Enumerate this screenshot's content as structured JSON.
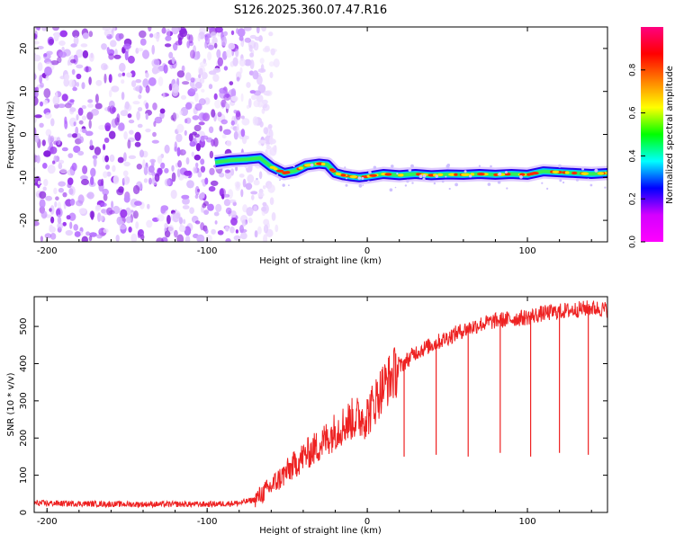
{
  "title": "S126.2025.360.07.47.R16",
  "colorbar": {
    "label": "Normalized spectral amplitude",
    "ticks": [
      "0.0",
      "0.2",
      "0.4",
      "0.6",
      "0.8"
    ],
    "stops": [
      "#ff00ff",
      "#d400ff",
      "#0000ff",
      "#00ffff",
      "#00ff00",
      "#ffff00",
      "#ff8000",
      "#ff0000",
      "#ff0080"
    ]
  },
  "chart_data": [
    {
      "type": "heatmap",
      "title": "S126.2025.360.07.47.R16",
      "xlabel": "Height of straight line (km)",
      "ylabel": "Frequency (Hz)",
      "xlim": [
        -208,
        150
      ],
      "ylim": [
        -25,
        25
      ],
      "xticks": [
        "-200",
        "-100",
        "0",
        "100"
      ],
      "yticks": [
        "-20",
        "-10",
        "0",
        "10",
        "20"
      ],
      "noise_region_x": [
        -208,
        -65
      ],
      "signal_track": {
        "x": [
          -95,
          -85,
          -75,
          -67,
          -60,
          -52,
          -45,
          -38,
          -30,
          -25,
          -20,
          -15,
          -10,
          -5,
          0,
          10,
          20,
          30,
          40,
          50,
          60,
          70,
          80,
          90,
          100,
          110,
          120,
          130,
          140,
          150
        ],
        "frequency": [
          -6.5,
          -6.0,
          -5.8,
          -5.5,
          -7.5,
          -9.0,
          -8.5,
          -7.2,
          -6.8,
          -7.0,
          -9.0,
          -9.5,
          -9.8,
          -10.0,
          -9.8,
          -9.2,
          -9.5,
          -9.2,
          -9.5,
          -9.3,
          -9.4,
          -9.2,
          -9.4,
          -9.2,
          -9.4,
          -8.6,
          -8.8,
          -9.0,
          -9.2,
          -9.0
        ]
      }
    },
    {
      "type": "line",
      "xlabel": "Height of straight line (km)",
      "ylabel": "SNR (10 * v/v)",
      "xlim": [
        -208,
        150
      ],
      "ylim": [
        0,
        580
      ],
      "xticks": [
        "-200",
        "-100",
        "0",
        "100"
      ],
      "yticks": [
        "0",
        "100",
        "200",
        "300",
        "400",
        "500"
      ],
      "color": "#ee2222",
      "x": [
        -208,
        -150,
        -100,
        -80,
        -70,
        -60,
        -50,
        -40,
        -30,
        -20,
        -10,
        0,
        10,
        20,
        30,
        40,
        50,
        60,
        70,
        80,
        90,
        100,
        110,
        120,
        130,
        140,
        150
      ],
      "y": [
        25,
        22,
        22,
        25,
        35,
        70,
        110,
        150,
        180,
        220,
        250,
        260,
        340,
        390,
        430,
        450,
        470,
        490,
        505,
        515,
        520,
        525,
        535,
        540,
        545,
        550,
        545
      ],
      "dropouts": [
        {
          "x": 23,
          "y": 150
        },
        {
          "x": 43,
          "y": 155
        },
        {
          "x": 63,
          "y": 150
        },
        {
          "x": 83,
          "y": 160
        },
        {
          "x": 102,
          "y": 150
        },
        {
          "x": 120,
          "y": 160
        },
        {
          "x": 138,
          "y": 155
        }
      ]
    }
  ]
}
